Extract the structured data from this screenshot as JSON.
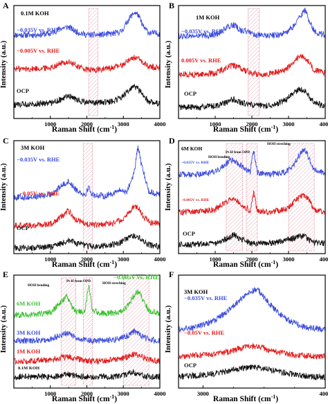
{
  "figure": {
    "ylabel": "Intensity (a.u.)",
    "xlabel": "Raman Shift (cm",
    "xlabel_sup": "-1",
    "xlabel_close": ")"
  },
  "colors": {
    "blue": "#3a4bdc",
    "red": "#e01b1b",
    "black": "#111111",
    "green": "#3cc030",
    "shade": "#ead9dd",
    "shade_edge": "#d86a86"
  },
  "chart_data": [
    {
      "panel": "A",
      "type": "line",
      "xlim": [
        0,
        4000
      ],
      "ticks": [
        "1000",
        "2000",
        "3000",
        "4000"
      ],
      "texts": [
        "0.1M KOH"
      ],
      "series": [
        {
          "name": "−0.035V vs. RHE",
          "color": "blue",
          "x": [
            0,
            500,
            1000,
            1300,
            1500,
            1700,
            2000,
            2300,
            2700,
            2950,
            3150,
            3300,
            3400,
            3550,
            3700,
            4000
          ],
          "values": [
            0.74,
            0.74,
            0.75,
            0.8,
            0.81,
            0.77,
            0.74,
            0.74,
            0.75,
            0.77,
            0.88,
            0.94,
            0.92,
            0.81,
            0.76,
            0.75
          ]
        },
        {
          "name": "−0.005V vs. RHE",
          "color": "red",
          "x": [
            0,
            500,
            1000,
            1300,
            1500,
            1700,
            2000,
            2300,
            2700,
            2950,
            3150,
            3300,
            3400,
            3550,
            3700,
            4000
          ],
          "values": [
            0.44,
            0.44,
            0.45,
            0.49,
            0.5,
            0.47,
            0.43,
            0.43,
            0.45,
            0.47,
            0.52,
            0.54,
            0.53,
            0.49,
            0.46,
            0.45
          ]
        },
        {
          "name": "OCP",
          "color": "black",
          "x": [
            0,
            500,
            1000,
            1300,
            1500,
            1700,
            2000,
            2300,
            2700,
            2950,
            3150,
            3300,
            3400,
            3550,
            3700,
            4000
          ],
          "values": [
            0.12,
            0.13,
            0.14,
            0.17,
            0.2,
            0.17,
            0.14,
            0.14,
            0.15,
            0.19,
            0.25,
            0.28,
            0.26,
            0.2,
            0.15,
            0.13
          ]
        }
      ],
      "shaded": [
        [
          2050,
          2300
        ]
      ]
    },
    {
      "panel": "B",
      "type": "line",
      "xlim": [
        0,
        4000
      ],
      "ticks": [
        "1000",
        "2000",
        "3000",
        "4000"
      ],
      "texts": [
        "1M KOH"
      ],
      "series": [
        {
          "name": "−0.035V vs. RHE",
          "color": "blue",
          "x": [
            0,
            500,
            1000,
            1300,
            1500,
            1700,
            2000,
            2100,
            2300,
            2700,
            2950,
            3150,
            3300,
            3450,
            3550,
            3700,
            4000
          ],
          "values": [
            0.73,
            0.73,
            0.74,
            0.8,
            0.83,
            0.78,
            0.76,
            0.74,
            0.73,
            0.74,
            0.76,
            0.82,
            0.9,
            0.96,
            0.88,
            0.77,
            0.74
          ]
        },
        {
          "name": "0.005V vs. RHE",
          "color": "red",
          "x": [
            0,
            500,
            1000,
            1300,
            1500,
            1700,
            2000,
            2300,
            2700,
            2950,
            3150,
            3300,
            3450,
            3550,
            3700,
            4000
          ],
          "values": [
            0.39,
            0.39,
            0.4,
            0.45,
            0.47,
            0.44,
            0.4,
            0.39,
            0.41,
            0.44,
            0.5,
            0.55,
            0.54,
            0.5,
            0.43,
            0.4
          ]
        },
        {
          "name": "OCP",
          "color": "black",
          "x": [
            0,
            500,
            1000,
            1300,
            1500,
            1700,
            2000,
            2300,
            2700,
            2950,
            3150,
            3300,
            3450,
            3550,
            3700,
            4000
          ],
          "values": [
            0.1,
            0.1,
            0.11,
            0.14,
            0.17,
            0.14,
            0.12,
            0.11,
            0.13,
            0.17,
            0.23,
            0.26,
            0.24,
            0.2,
            0.14,
            0.11
          ]
        }
      ],
      "shaded": [
        [
          1900,
          2200
        ]
      ]
    },
    {
      "panel": "C",
      "type": "line",
      "xlim": [
        0,
        4000
      ],
      "ticks": [
        "1000",
        "2000",
        "3000",
        "4000"
      ],
      "texts": [
        "3M KOH"
      ],
      "series": [
        {
          "name": "−0.035V vs. RHE",
          "color": "blue",
          "x": [
            0,
            500,
            1000,
            1300,
            1500,
            1700,
            1950,
            2050,
            2150,
            2500,
            2900,
            3100,
            3300,
            3400,
            3500,
            3700,
            4000
          ],
          "values": [
            0.5,
            0.5,
            0.52,
            0.6,
            0.64,
            0.57,
            0.52,
            0.59,
            0.52,
            0.51,
            0.56,
            0.55,
            0.72,
            0.95,
            0.78,
            0.55,
            0.52
          ]
        },
        {
          "name": "−0.05V vs. RHE",
          "color": "red",
          "x": [
            0,
            500,
            1000,
            1300,
            1500,
            1700,
            2000,
            2300,
            2700,
            2950,
            3150,
            3300,
            3400,
            3550,
            3700,
            4000
          ],
          "values": [
            0.25,
            0.25,
            0.26,
            0.33,
            0.38,
            0.3,
            0.26,
            0.25,
            0.27,
            0.3,
            0.36,
            0.42,
            0.41,
            0.33,
            0.28,
            0.26
          ]
        },
        {
          "name": "OCP",
          "color": "black",
          "x": [
            0,
            500,
            1000,
            1300,
            1500,
            1700,
            2000,
            2300,
            2700,
            2950,
            3150,
            3300,
            3400,
            3550,
            3700,
            4000
          ],
          "values": [
            0.05,
            0.05,
            0.06,
            0.09,
            0.12,
            0.09,
            0.07,
            0.06,
            0.08,
            0.1,
            0.14,
            0.16,
            0.15,
            0.11,
            0.08,
            0.06
          ]
        }
      ],
      "shaded": [
        [
          1900,
          2150
        ]
      ]
    },
    {
      "panel": "D",
      "type": "line",
      "xlim": [
        0,
        4000
      ],
      "ticks": [
        "1000",
        "2000",
        "3000",
        "4000"
      ],
      "texts": [
        "6M KOH",
        "Pt-H from OPD",
        "HOH bending",
        "HOH streching"
      ],
      "series": [
        {
          "name": "−0.035V vs. RHE",
          "color": "blue",
          "x": [
            0,
            500,
            1000,
            1300,
            1500,
            1700,
            1950,
            2050,
            2150,
            2500,
            2900,
            3100,
            3300,
            3450,
            3550,
            3700,
            4000
          ],
          "values": [
            0.7,
            0.7,
            0.72,
            0.8,
            0.83,
            0.78,
            0.72,
            0.92,
            0.72,
            0.7,
            0.72,
            0.76,
            0.88,
            0.92,
            0.85,
            0.74,
            0.71
          ]
        },
        {
          "name": "−0.005V vs. RHE",
          "color": "red",
          "x": [
            0,
            500,
            1000,
            1300,
            1500,
            1700,
            1950,
            2050,
            2150,
            2500,
            2900,
            3100,
            3300,
            3450,
            3550,
            3700,
            4000
          ],
          "values": [
            0.37,
            0.37,
            0.39,
            0.46,
            0.5,
            0.44,
            0.38,
            0.54,
            0.38,
            0.37,
            0.39,
            0.44,
            0.5,
            0.52,
            0.47,
            0.39,
            0.37
          ]
        },
        {
          "name": "OCP",
          "color": "black",
          "x": [
            0,
            500,
            1000,
            1300,
            1500,
            1700,
            2000,
            2300,
            2700,
            2950,
            3150,
            3300,
            3450,
            3550,
            3700,
            4000
          ],
          "values": [
            0.08,
            0.08,
            0.09,
            0.13,
            0.17,
            0.13,
            0.09,
            0.09,
            0.1,
            0.12,
            0.14,
            0.16,
            0.15,
            0.12,
            0.1,
            0.09
          ]
        }
      ],
      "shaded": [
        [
          1300,
          1750
        ],
        [
          1850,
          2150
        ],
        [
          3000,
          3700
        ]
      ]
    },
    {
      "panel": "E",
      "type": "line",
      "xlim": [
        0,
        4000
      ],
      "ticks": [
        "1000",
        "2000",
        "3000",
        "4000"
      ],
      "texts": [
        "HOH bending",
        "Pt-H from OPD",
        "HOH streching",
        "−0.005V vs. RHE"
      ],
      "series": [
        {
          "name": "6M KOH",
          "color": "green",
          "x": [
            0,
            500,
            1000,
            1300,
            1450,
            1550,
            1700,
            1950,
            2050,
            2150,
            2500,
            2900,
            3100,
            3300,
            3400,
            3550,
            3700,
            4000
          ],
          "values": [
            0.65,
            0.65,
            0.67,
            0.76,
            0.82,
            0.74,
            0.68,
            0.68,
            0.92,
            0.68,
            0.66,
            0.67,
            0.72,
            0.82,
            0.86,
            0.78,
            0.68,
            0.66
          ]
        },
        {
          "name": "3M KOH",
          "color": "blue",
          "x": [
            0,
            500,
            1000,
            1300,
            1500,
            1700,
            2000,
            2300,
            2700,
            2950,
            3150,
            3300,
            3400,
            3550,
            3700,
            4000
          ],
          "values": [
            0.42,
            0.42,
            0.43,
            0.47,
            0.49,
            0.45,
            0.42,
            0.42,
            0.43,
            0.44,
            0.47,
            0.5,
            0.49,
            0.45,
            0.43,
            0.42
          ]
        },
        {
          "name": "1M KOH",
          "color": "red",
          "x": [
            0,
            500,
            1000,
            1300,
            1500,
            1700,
            2000,
            2300,
            2700,
            2950,
            3150,
            3300,
            3400,
            3550,
            3700,
            4000
          ],
          "values": [
            0.24,
            0.24,
            0.25,
            0.27,
            0.28,
            0.26,
            0.24,
            0.24,
            0.25,
            0.26,
            0.28,
            0.3,
            0.29,
            0.27,
            0.25,
            0.24
          ]
        },
        {
          "name": "0.1M KOH",
          "color": "black",
          "x": [
            0,
            500,
            1000,
            1300,
            1500,
            1700,
            2000,
            2300,
            2700,
            2950,
            3150,
            3300,
            3400,
            3550,
            3700,
            4000
          ],
          "values": [
            0.1,
            0.1,
            0.1,
            0.11,
            0.12,
            0.11,
            0.1,
            0.1,
            0.1,
            0.11,
            0.13,
            0.14,
            0.13,
            0.11,
            0.1,
            0.1
          ]
        }
      ],
      "shaded": [
        [
          1300,
          1700
        ],
        [
          1900,
          2150
        ],
        [
          3000,
          3700
        ]
      ]
    },
    {
      "panel": "F",
      "type": "line",
      "xlim": [
        2800,
        4000
      ],
      "ticks": [
        "3000",
        "4000"
      ],
      "texts": [
        "3M KOH"
      ],
      "series": [
        {
          "name": "−0.035V vs. RHE",
          "color": "blue",
          "x": [
            2800,
            2950,
            3100,
            3200,
            3300,
            3400,
            3450,
            3500,
            3600,
            3700,
            3800,
            3900,
            4000
          ],
          "values": [
            0.52,
            0.54,
            0.6,
            0.68,
            0.78,
            0.86,
            0.87,
            0.8,
            0.68,
            0.6,
            0.55,
            0.53,
            0.52
          ]
        },
        {
          "name": "−0.05V vs. RHE",
          "color": "red",
          "x": [
            2800,
            2950,
            3100,
            3200,
            3300,
            3400,
            3450,
            3500,
            3600,
            3700,
            3800,
            3900,
            4000
          ],
          "values": [
            0.28,
            0.29,
            0.3,
            0.32,
            0.35,
            0.37,
            0.37,
            0.35,
            0.32,
            0.3,
            0.29,
            0.28,
            0.28
          ]
        },
        {
          "name": "OCP",
          "color": "black",
          "x": [
            2800,
            2950,
            3100,
            3200,
            3300,
            3400,
            3450,
            3500,
            3600,
            3700,
            3800,
            3900,
            4000
          ],
          "values": [
            0.1,
            0.11,
            0.13,
            0.15,
            0.17,
            0.18,
            0.18,
            0.17,
            0.15,
            0.13,
            0.11,
            0.1,
            0.1
          ]
        }
      ],
      "shaded": []
    }
  ]
}
